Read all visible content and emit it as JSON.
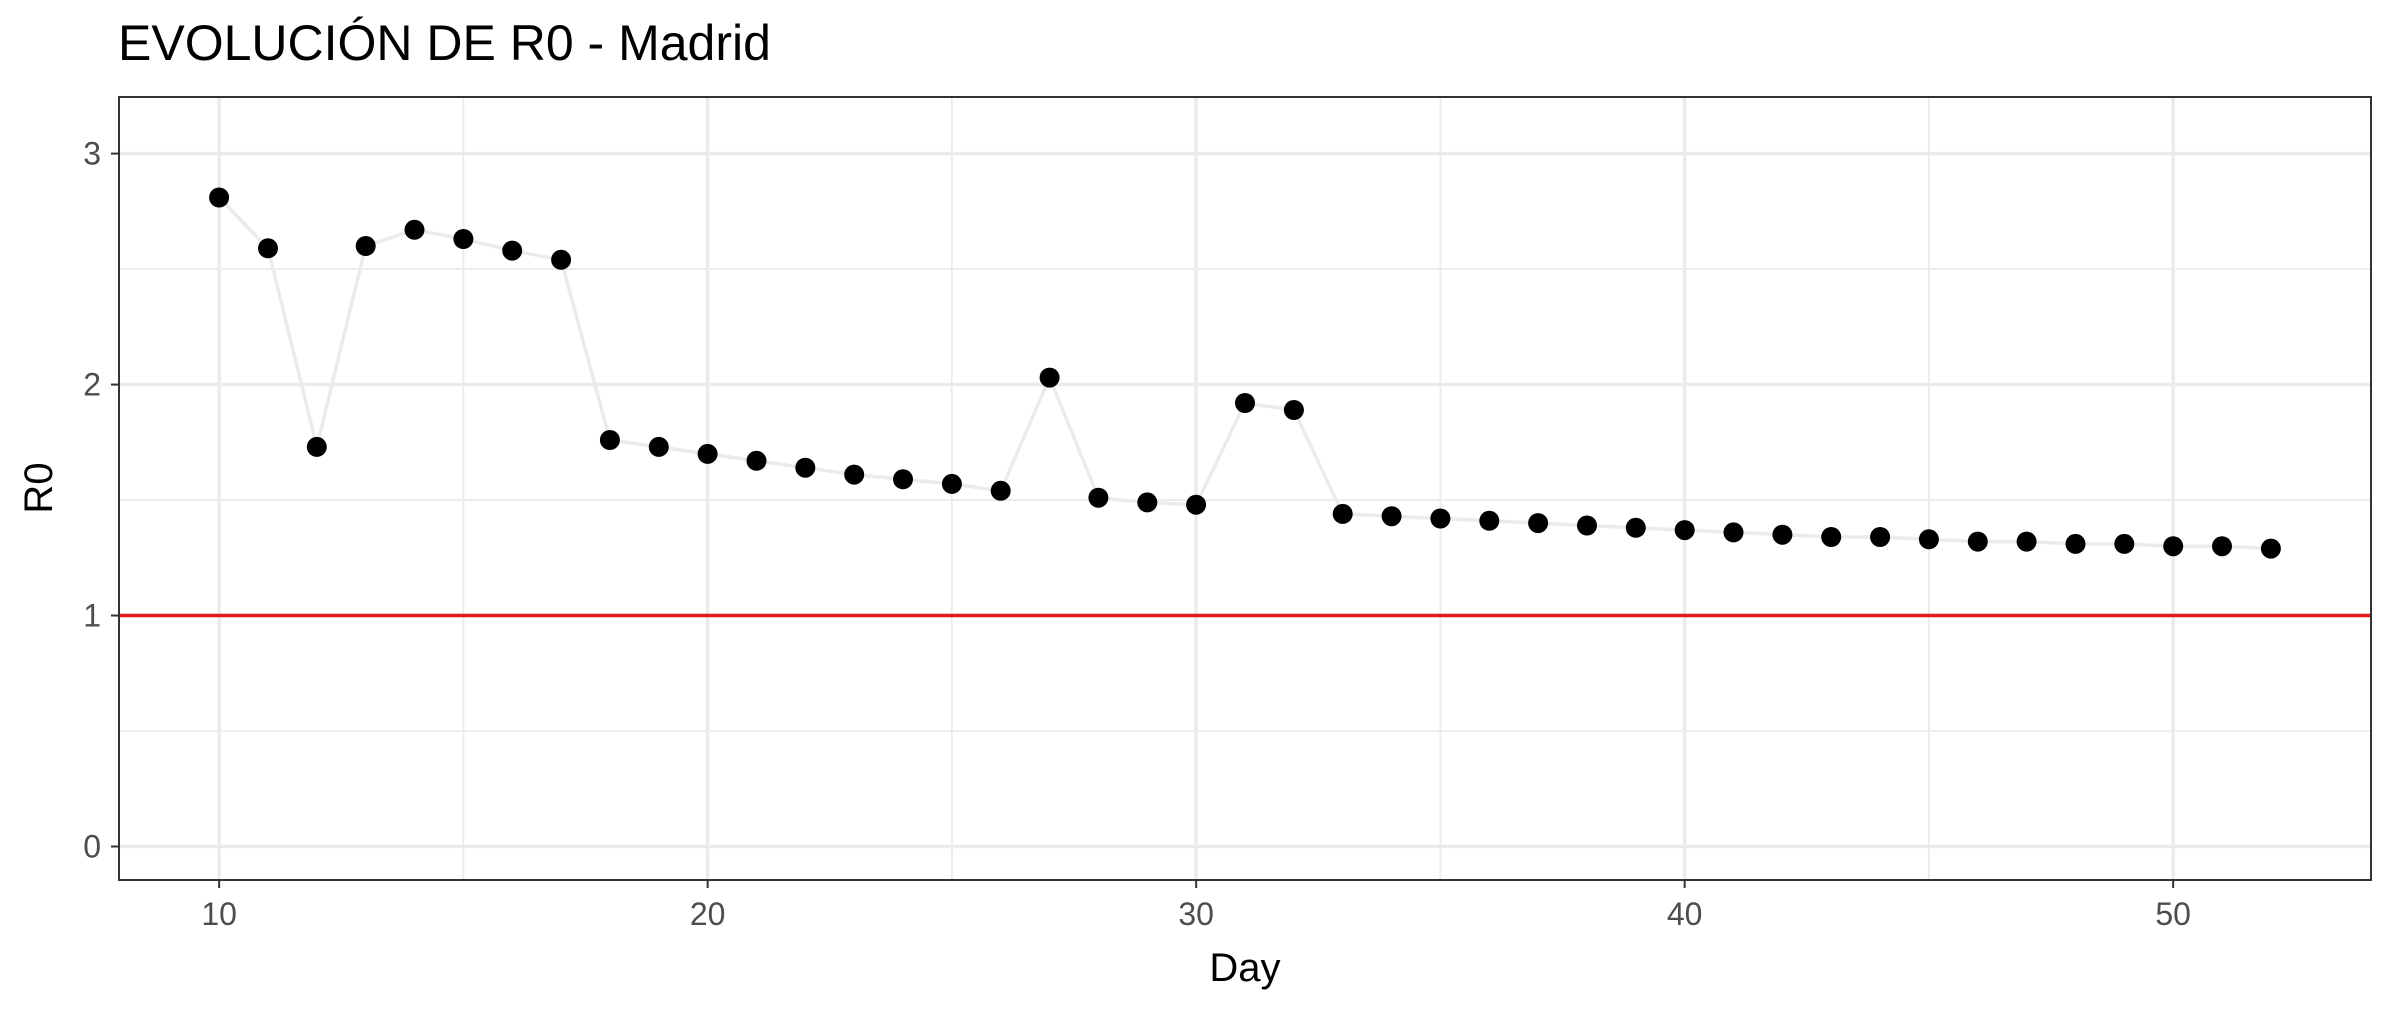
{
  "chart_data": {
    "type": "line",
    "title": "EVOLUCIÓN DE R0 - Madrid",
    "xlabel": "Day",
    "ylabel": "R0",
    "xlim": [
      7.95,
      54.05
    ],
    "ylim": [
      -0.145,
      3.245
    ],
    "x_ticks": [
      10,
      20,
      30,
      40,
      50
    ],
    "y_ticks": [
      0,
      1,
      2,
      3
    ],
    "x_minor_ticks": [
      15,
      25,
      35,
      45
    ],
    "y_minor_ticks": [
      0.5,
      1.5,
      2.5
    ],
    "grid": true,
    "series": [
      {
        "color": "#000000",
        "line_color": "#ebebeb",
        "marker": "circle",
        "x": [
          10,
          11,
          12,
          13,
          14,
          15,
          16,
          17,
          18,
          19,
          20,
          21,
          22,
          23,
          24,
          25,
          26,
          27,
          28,
          29,
          30,
          31,
          32,
          33,
          34,
          35,
          36,
          37,
          38,
          39,
          40,
          41,
          42,
          43,
          44,
          45,
          46,
          47,
          48,
          49,
          50,
          51,
          52
        ],
        "y": [
          2.81,
          2.59,
          1.73,
          2.6,
          2.67,
          2.63,
          2.58,
          2.54,
          1.76,
          1.73,
          1.7,
          1.67,
          1.64,
          1.61,
          1.59,
          1.57,
          1.54,
          2.03,
          1.51,
          1.49,
          1.48,
          1.92,
          1.89,
          1.44,
          1.43,
          1.42,
          1.41,
          1.4,
          1.39,
          1.38,
          1.37,
          1.36,
          1.35,
          1.34,
          1.34,
          1.33,
          1.32,
          1.32,
          1.31,
          1.31,
          1.3,
          1.3,
          1.29
        ]
      }
    ],
    "reference_lines": [
      {
        "axis": "y",
        "value": 1,
        "color": "#e41a1c"
      }
    ]
  }
}
